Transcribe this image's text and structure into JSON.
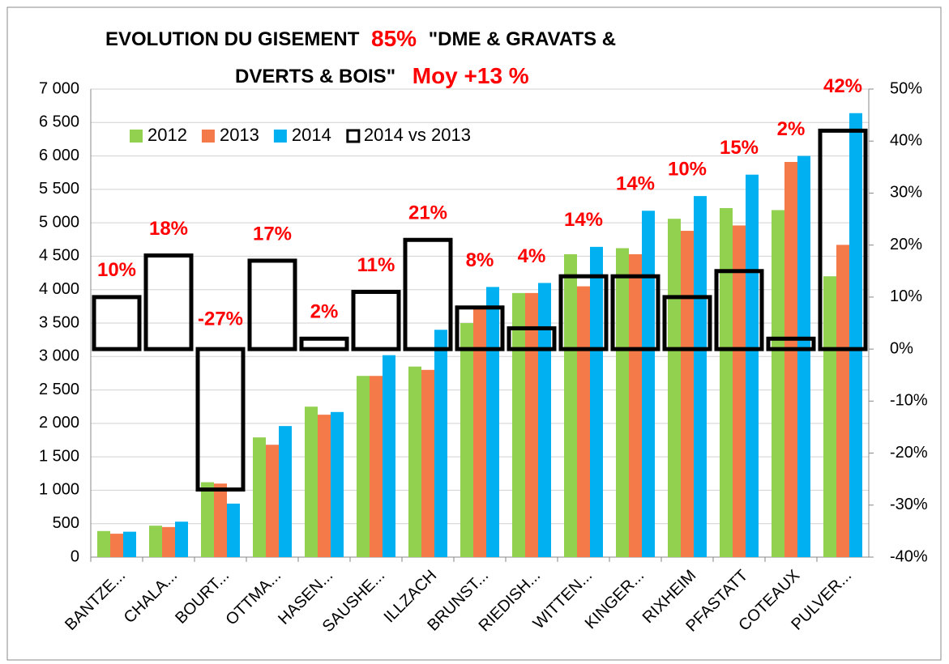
{
  "chart_data": {
    "type": "bar",
    "title": [
      "EVOLUTION   DU  GISEMENT",
      "85%",
      "\"DME & GRAVATS &",
      "DVERTS & BOIS\"",
      "Moy   +13 %"
    ],
    "categories": [
      "BANTZE...",
      "CHALA...",
      "BOURT...",
      "OTTMA...",
      "HASEN...",
      "SAUSHE...",
      "ILLZACH",
      "BRUNST...",
      "RIEDISH...",
      "WITTEN...",
      "KINGER...",
      "RIXHEIM",
      "PFASTATT",
      "COTEAUX",
      "PULVER..."
    ],
    "series": [
      {
        "name": "2012",
        "color": "#92d050",
        "values": [
          390,
          470,
          1120,
          1790,
          2250,
          2710,
          2850,
          3500,
          3950,
          4530,
          4620,
          5060,
          5220,
          5190,
          4200
        ]
      },
      {
        "name": "2013",
        "color": "#f47a4a",
        "values": [
          350,
          450,
          1100,
          1680,
          2130,
          2710,
          2800,
          3720,
          3950,
          4050,
          4530,
          4880,
          4960,
          5910,
          4670
        ]
      },
      {
        "name": "2014",
        "color": "#00b0f0",
        "values": [
          380,
          530,
          800,
          1960,
          2170,
          3020,
          3400,
          4040,
          4100,
          4640,
          5180,
          5400,
          5720,
          6000,
          6640
        ]
      },
      {
        "name": "2014 vs 2013",
        "color": "#000000",
        "axis": "y2",
        "values": [
          10,
          18,
          -27,
          17,
          2,
          11,
          21,
          8,
          4,
          14,
          14,
          10,
          15,
          2,
          42
        ],
        "value_labels": [
          "10%",
          "18%",
          "-27%",
          "17%",
          "2%",
          "11%",
          "21%",
          "8%",
          "4%",
          "14%",
          "14%",
          "10%",
          "15%",
          "2%",
          "42%"
        ],
        "label_color": "#ff0000"
      }
    ],
    "ylim": [
      0,
      7000
    ],
    "yticks": [
      0,
      500,
      {
        "value": 1000,
        "label": "1 000"
      },
      {
        "value": 1500,
        "label": "1 500"
      },
      {
        "value": 2000,
        "label": "2 000"
      },
      {
        "value": 2500,
        "label": "2 500"
      },
      {
        "value": 3000,
        "label": "3 000"
      },
      {
        "value": 3500,
        "label": "3 500"
      },
      {
        "value": 4000,
        "label": "4 000"
      },
      {
        "value": 4500,
        "label": "4 500"
      },
      {
        "value": 5000,
        "label": "5 000"
      },
      {
        "value": 5500,
        "label": "5 500"
      },
      {
        "value": 6000,
        "label": "6 000"
      },
      {
        "value": 6500,
        "label": "6 500"
      },
      {
        "value": 7000,
        "label": "7 000"
      }
    ],
    "y2lim": [
      -40,
      50
    ],
    "y2ticks": [
      {
        "value": -40,
        "label": "-40%"
      },
      {
        "value": -30,
        "label": "-30%"
      },
      {
        "value": -20,
        "label": "-20%"
      },
      {
        "value": -10,
        "label": "-10%"
      },
      {
        "value": 0,
        "label": "0%"
      },
      {
        "value": 10,
        "label": "10%"
      },
      {
        "value": 20,
        "label": "20%"
      },
      {
        "value": 30,
        "label": "30%"
      },
      {
        "value": 40,
        "label": "40%"
      },
      {
        "value": 50,
        "label": "50%"
      }
    ],
    "grid": true,
    "legend": "top-left"
  }
}
